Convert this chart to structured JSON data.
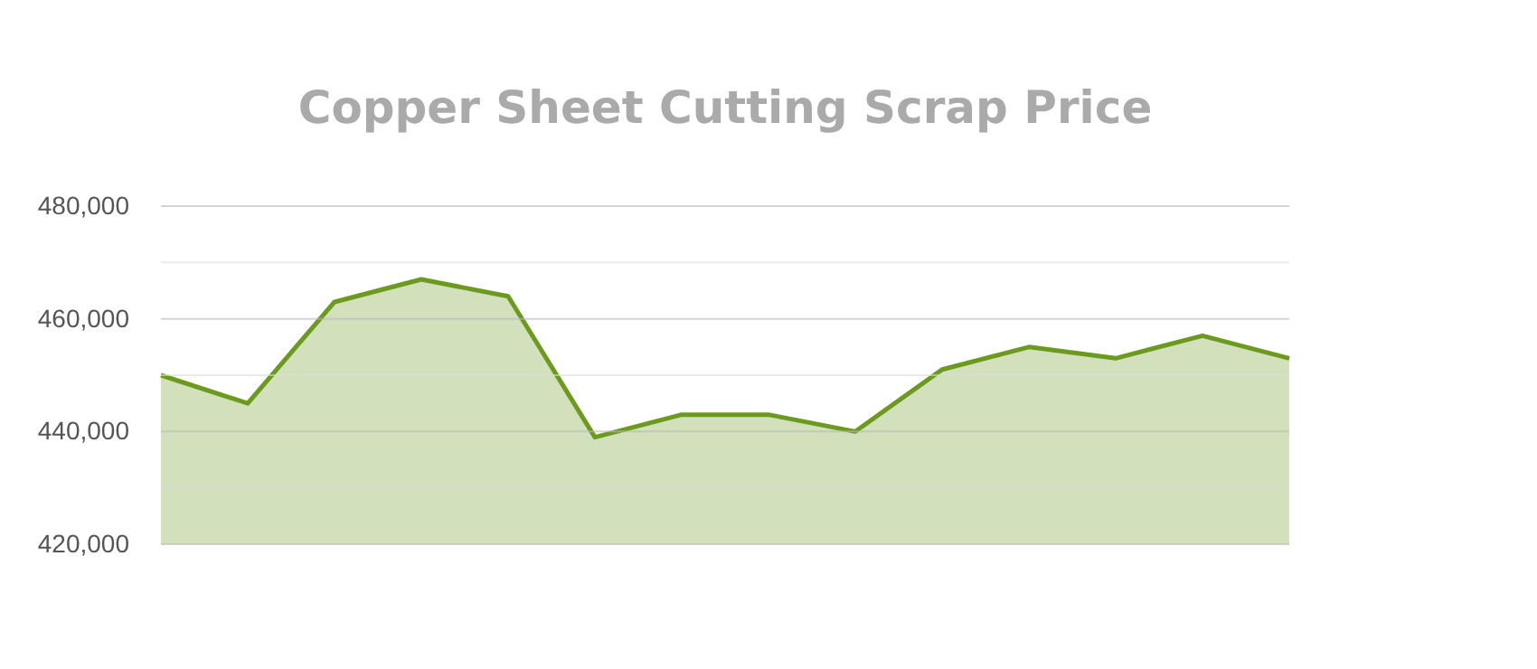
{
  "chart_data": {
    "type": "area",
    "title": "Copper Sheet Cutting Scrap Price",
    "categories": [
      null,
      null,
      null,
      null,
      null,
      null,
      null,
      null,
      null,
      null,
      null,
      null,
      null,
      null
    ],
    "series": [
      {
        "color": "#6b9a1f",
        "values": [
          450000,
          445000,
          463000,
          467000,
          464000,
          439000,
          443000,
          443000,
          440000,
          451000,
          455000,
          453000,
          457000,
          453000
        ]
      }
    ],
    "ylim": [
      420000,
      480000
    ],
    "yticks": [
      {
        "value": 420000,
        "label": "420,000"
      },
      {
        "value": 430000,
        "label": null
      },
      {
        "value": 440000,
        "label": "440,000"
      },
      {
        "value": 450000,
        "label": null
      },
      {
        "value": 460000,
        "label": "460,000"
      },
      {
        "value": 470000,
        "label": null
      },
      {
        "value": 480000,
        "label": "480,000"
      }
    ],
    "grid": "y",
    "legend": false
  }
}
